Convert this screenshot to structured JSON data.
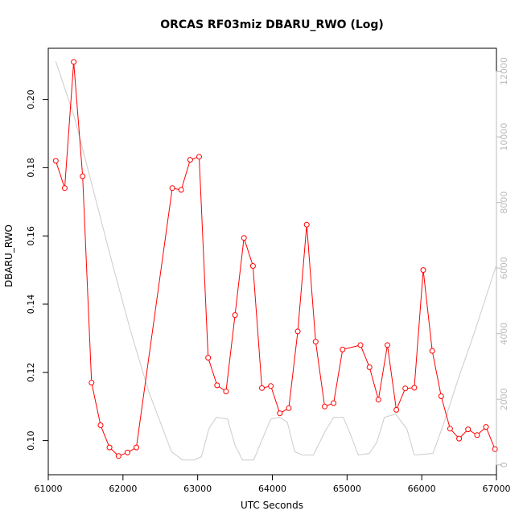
{
  "chart_data": {
    "type": "line",
    "title": "ORCAS RF03miz DBARU_RWO (Log)",
    "xlabel": "UTC Seconds",
    "ylabel": "DBARU_RWO",
    "xlim": [
      61000,
      67000
    ],
    "ylim": [
      0.09,
      0.215
    ],
    "y2lim": [
      -300,
      12700
    ],
    "x_ticks": [
      "61000",
      "62000",
      "63000",
      "64000",
      "65000",
      "66000",
      "67000"
    ],
    "y_ticks": [
      "0.10",
      "0.12",
      "0.14",
      "0.16",
      "0.18",
      "0.20"
    ],
    "y2_ticks": [
      "0",
      "2000",
      "4000",
      "6000",
      "8000",
      "10000",
      "12000"
    ],
    "colors": {
      "primary": "#ff0000",
      "secondary": "#cccccc",
      "axis": "#000000",
      "axis_right": "#bbbbbb"
    },
    "series": [
      {
        "axis": "left",
        "style": "line-with-circle-markers",
        "color": "#ff0000",
        "x": [
          61100,
          61220,
          61340,
          61460,
          61580,
          61700,
          61820,
          61940,
          62060,
          62180,
          62660,
          62780,
          62900,
          63020,
          63140,
          63260,
          63380,
          63500,
          63620,
          63740,
          63860,
          63980,
          64100,
          64220,
          64340,
          64460,
          64580,
          64700,
          64820,
          64940,
          65180,
          65300,
          65420,
          65540,
          65660,
          65780,
          65900,
          66020,
          66140,
          66260,
          66380,
          66500,
          66620,
          66740,
          66860,
          66980
        ],
        "y": [
          0.182,
          0.174,
          0.211,
          0.1775,
          0.117,
          0.1045,
          0.098,
          0.0955,
          0.0965,
          0.098,
          0.174,
          0.1735,
          0.1823,
          0.1832,
          0.1243,
          0.1162,
          0.1144,
          0.1368,
          0.1594,
          0.1512,
          0.1154,
          0.116,
          0.108,
          0.1095,
          0.132,
          0.1633,
          0.129,
          0.11,
          0.111,
          0.1267,
          0.128,
          0.1215,
          0.112,
          0.128,
          0.109,
          0.1153,
          0.1155,
          0.15,
          0.1263,
          0.113,
          0.1035,
          0.1006,
          0.1033,
          0.1016,
          0.104,
          0.0975
        ]
      },
      {
        "axis": "right",
        "style": "line",
        "color": "#cccccc",
        "x": [
          61100,
          61350,
          61600,
          61850,
          62100,
          62350,
          62650,
          62800,
          62950,
          63050,
          63150,
          63250,
          63400,
          63500,
          63600,
          63750,
          63850,
          63980,
          64100,
          64200,
          64300,
          64400,
          64550,
          64700,
          64820,
          64950,
          65050,
          65150,
          65300,
          65400,
          65500,
          65650,
          65800,
          65900,
          66150,
          66300,
          66500,
          66700,
          67000
        ],
        "y": [
          12300,
          10600,
          8400,
          6200,
          4100,
          2200,
          400,
          150,
          150,
          250,
          1100,
          1450,
          1400,
          600,
          150,
          150,
          700,
          1400,
          1450,
          1300,
          400,
          300,
          300,
          1000,
          1450,
          1450,
          900,
          300,
          350,
          700,
          1450,
          1550,
          1100,
          300,
          350,
          1300,
          2700,
          4000,
          6100
        ]
      }
    ]
  }
}
